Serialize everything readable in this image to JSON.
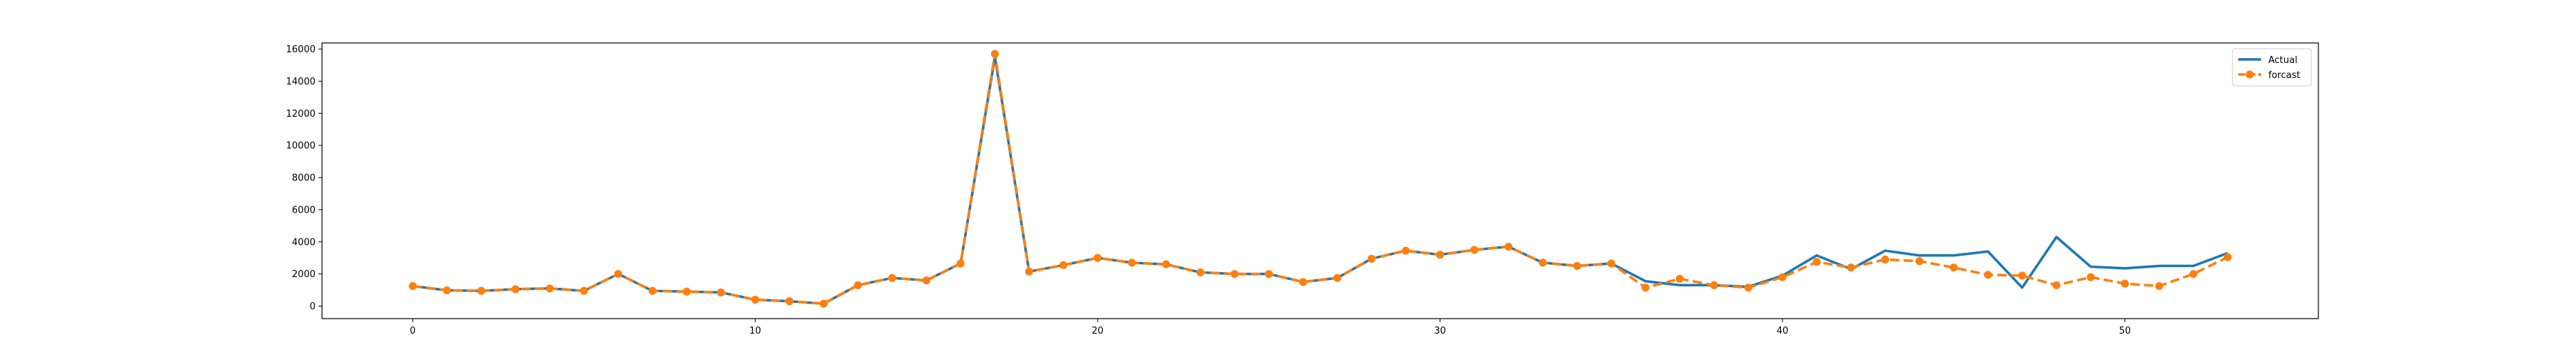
{
  "chart_data": {
    "type": "line",
    "title": "",
    "xlabel": "",
    "ylabel": "",
    "xlim": [
      -2.65,
      55.65
    ],
    "ylim": [
      -780,
      16380
    ],
    "xticks": [
      0,
      10,
      20,
      30,
      40,
      50
    ],
    "yticks": [
      0,
      2000,
      4000,
      6000,
      8000,
      10000,
      12000,
      14000,
      16000
    ],
    "grid": false,
    "legend_position": "upper right",
    "x": [
      0,
      1,
      2,
      3,
      4,
      5,
      6,
      7,
      8,
      9,
      10,
      11,
      12,
      13,
      14,
      15,
      16,
      17,
      18,
      19,
      20,
      21,
      22,
      23,
      24,
      25,
      26,
      27,
      28,
      29,
      30,
      31,
      32,
      33,
      34,
      35,
      36,
      37,
      38,
      39,
      40,
      41,
      42,
      43,
      44,
      45,
      46,
      47,
      48,
      49,
      50,
      51,
      52,
      53
    ],
    "series": [
      {
        "name": "Actual",
        "color": "#1f77b4",
        "style": "solid",
        "marker": "none",
        "values": [
          1250,
          980,
          950,
          1050,
          1100,
          950,
          2000,
          950,
          900,
          850,
          400,
          300,
          150,
          1300,
          1750,
          1600,
          2650,
          15500,
          2150,
          2550,
          3000,
          2700,
          2600,
          2100,
          2000,
          2000,
          1500,
          1750,
          2950,
          3450,
          3200,
          3500,
          3700,
          2700,
          2500,
          2650,
          1550,
          1300,
          1300,
          1200,
          1900,
          3150,
          2300,
          3450,
          3150,
          3150,
          3400,
          1150,
          4300,
          2450,
          2350,
          2500,
          2500,
          3300
        ]
      },
      {
        "name": "forcast",
        "color": "#ff7f0e",
        "style": "dashed",
        "marker": "circle",
        "values": [
          1250,
          980,
          950,
          1050,
          1100,
          950,
          2000,
          950,
          900,
          850,
          400,
          300,
          150,
          1300,
          1750,
          1600,
          2650,
          15700,
          2150,
          2550,
          3000,
          2700,
          2600,
          2100,
          2000,
          2000,
          1500,
          1750,
          2950,
          3450,
          3200,
          3500,
          3700,
          2700,
          2500,
          2650,
          1150,
          1700,
          1300,
          1150,
          1800,
          2750,
          2400,
          2900,
          2800,
          2400,
          1950,
          1900,
          1300,
          1800,
          1400,
          1250,
          2000,
          3050
        ]
      }
    ]
  }
}
